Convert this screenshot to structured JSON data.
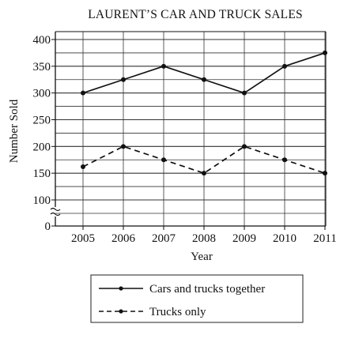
{
  "chart_data": {
    "type": "line",
    "title": "LAURENT’S CAR AND TRUCK SALES",
    "xlabel": "Year",
    "ylabel": "Number Sold",
    "categories": [
      "2005",
      "2006",
      "2007",
      "2008",
      "2009",
      "2010",
      "2011"
    ],
    "y_ticks": [
      "0",
      "100",
      "150",
      "200",
      "250",
      "300",
      "350",
      "400"
    ],
    "ylim": [
      100,
      400
    ],
    "axis_break": true,
    "grid": true,
    "legend_position": "bottom",
    "series": [
      {
        "name": "Cars and trucks together",
        "style": "solid",
        "values": [
          300,
          325,
          350,
          325,
          300,
          350,
          375
        ]
      },
      {
        "name": "Trucks only",
        "style": "dashed",
        "values": [
          162,
          200,
          175,
          150,
          200,
          175,
          150
        ]
      }
    ]
  }
}
